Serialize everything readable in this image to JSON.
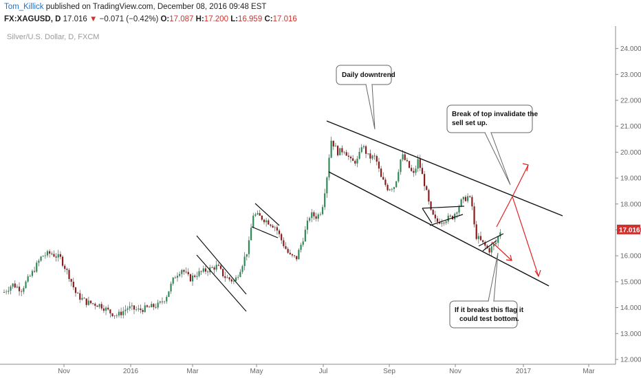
{
  "header": {
    "author": "Tom_Killick",
    "published": " published on TradingView.com, December 08, 2016 09:48 EST",
    "symbol": "FX:XAGUSD, D",
    "last": "17.016",
    "arrow": "▼",
    "change": "−0.071 (−0.42%)",
    "o_label": "O:",
    "o_value": "17.087",
    "h_label": "H:",
    "h_value": "17.200",
    "l_label": "L:",
    "l_value": "16.959",
    "c_label": "C:",
    "c_value": "17.016"
  },
  "chart_data": {
    "type": "candlestick",
    "title": "Silver/U.S. Dollar, D, FXCM",
    "ylim": [
      11.8,
      25
    ],
    "y_ticks": [
      "12.000",
      "13.000",
      "14.000",
      "15.000",
      "16.000",
      "17.000",
      "18.000",
      "19.000",
      "20.000",
      "21.000",
      "22.000",
      "23.000",
      "24.000"
    ],
    "x_ticks": [
      "Nov",
      "2016",
      "Mar",
      "May",
      "Jul",
      "Sep",
      "Nov",
      "2017",
      "Mar"
    ],
    "last_price_label": "17.016",
    "series_path": [
      [
        0,
        14.6
      ],
      [
        12,
        14.9
      ],
      [
        25,
        14.7
      ],
      [
        40,
        15.3
      ],
      [
        55,
        16.0
      ],
      [
        68,
        16.1
      ],
      [
        82,
        15.9
      ],
      [
        95,
        15.2
      ],
      [
        105,
        14.5
      ],
      [
        120,
        14.2
      ],
      [
        140,
        14.1
      ],
      [
        155,
        13.8
      ],
      [
        165,
        13.7
      ],
      [
        180,
        14.0
      ],
      [
        195,
        13.9
      ],
      [
        210,
        14.0
      ],
      [
        225,
        14.1
      ],
      [
        235,
        14.4
      ],
      [
        248,
        15.2
      ],
      [
        258,
        15.5
      ],
      [
        270,
        15.1
      ],
      [
        280,
        15.3
      ],
      [
        290,
        15.4
      ],
      [
        300,
        15.5
      ],
      [
        310,
        15.6
      ],
      [
        320,
        15.2
      ],
      [
        335,
        15.0
      ],
      [
        345,
        15.6
      ],
      [
        355,
        16.3
      ],
      [
        362,
        17.6
      ],
      [
        372,
        17.5
      ],
      [
        385,
        17.3
      ],
      [
        395,
        17.1
      ],
      [
        405,
        16.5
      ],
      [
        415,
        16.0
      ],
      [
        425,
        15.9
      ],
      [
        435,
        16.7
      ],
      [
        445,
        17.6
      ],
      [
        455,
        17.5
      ],
      [
        462,
        17.8
      ],
      [
        470,
        19.2
      ],
      [
        475,
        20.5
      ],
      [
        485,
        20.0
      ],
      [
        495,
        20.1
      ],
      [
        505,
        19.6
      ],
      [
        515,
        19.7
      ],
      [
        520,
        20.3
      ],
      [
        530,
        19.8
      ],
      [
        540,
        19.8
      ],
      [
        548,
        19.0
      ],
      [
        558,
        18.6
      ],
      [
        568,
        18.7
      ],
      [
        578,
        19.9
      ],
      [
        585,
        19.6
      ],
      [
        595,
        19.1
      ],
      [
        602,
        19.7
      ],
      [
        612,
        18.7
      ],
      [
        620,
        17.7
      ],
      [
        628,
        17.3
      ],
      [
        640,
        17.4
      ],
      [
        652,
        17.5
      ],
      [
        665,
        18.1
      ],
      [
        675,
        18.3
      ],
      [
        680,
        18.0
      ],
      [
        685,
        16.8
      ],
      [
        695,
        16.5
      ],
      [
        705,
        16.2
      ],
      [
        715,
        16.5
      ],
      [
        722,
        17.0
      ]
    ],
    "annotations": [
      "Daily downtrend",
      "Break of top invalidate the",
      "sell set up.",
      "If it breaks this flag it",
      "could test bottom."
    ]
  }
}
